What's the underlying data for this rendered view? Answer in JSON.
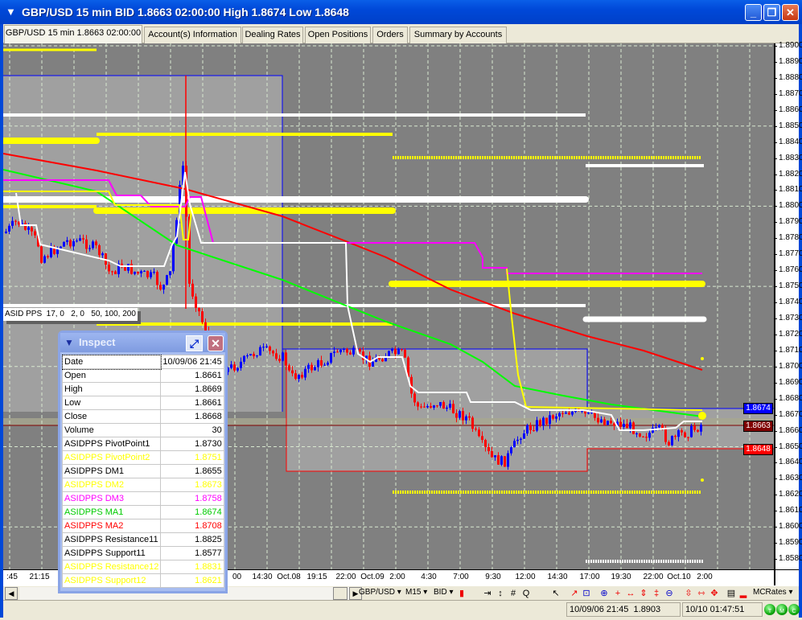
{
  "window": {
    "title": "GBP/USD 15 min BID 1.8663 02:00:00 High 1.8674 Low 1.8648",
    "icon": "fxcm-logo-icon",
    "buttons": {
      "minimize": "_",
      "restore": "❐",
      "close": "✕"
    }
  },
  "tabs": [
    {
      "label": "GBP/USD 15 min 1.8663 02:00:00",
      "active": true
    },
    {
      "label": "Account(s) Information"
    },
    {
      "label": "Dealing Rates"
    },
    {
      "label": "Open Positions"
    },
    {
      "label": "Orders"
    },
    {
      "label": "Summary by Accounts"
    }
  ],
  "chart": {
    "background": "#808080",
    "indicator_label": "ASID PPS  17, 0   2, 0   50, 100, 200",
    "price_axis": [
      "1.8900",
      "1.8890",
      "1.8880",
      "1.8870",
      "1.8860",
      "1.8850",
      "1.8840",
      "1.8830",
      "1.8820",
      "1.8810",
      "1.8800",
      "1.8790",
      "1.8780",
      "1.8770",
      "1.8760",
      "1.8750",
      "1.8740",
      "1.8730",
      "1.8720",
      "1.8710",
      "1.8700",
      "1.8690",
      "1.8680",
      "1.8670",
      "1.8660",
      "1.8650",
      "1.8640",
      "1.8630",
      "1.8620",
      "1.8610",
      "1.8600",
      "1.8590",
      "1.8580"
    ],
    "price_tags": [
      {
        "value": "1.8674",
        "color": "#0000ff"
      },
      {
        "value": "1.8663",
        "color": "#800000"
      },
      {
        "value": "1.8648",
        "color": "#ff0000"
      }
    ],
    "time_axis": [
      ":45",
      "21:15",
      "00",
      "14:30",
      "Oct.08",
      "19:15",
      "22:00",
      "Oct.09",
      "2:00",
      "4:30",
      "7:00",
      "9:30",
      "12:00",
      "14:30",
      "17:00",
      "19:30",
      "22:00",
      "Oct.10",
      "2:00"
    ],
    "colors": {
      "up": "#0000ff",
      "down": "#ff0000",
      "ma1": "#00ff00",
      "ma2": "#ff0000",
      "dm1": "#ffffff",
      "dm2": "#ffff00",
      "dm3": "#ff00ff"
    }
  },
  "toolbar": {
    "symbol": "GBP/USD ▾",
    "timeframe": "M15 ▾",
    "price_type": "BID ▾",
    "chart_type_icon": "candlestick-icon",
    "zoom_icon": "⊕",
    "rates_source": "MCRates ▾"
  },
  "status": {
    "cursor": "10/09/06 21:45  1.8903",
    "time": "10/10 01:47:51",
    "indicators": [
      "T",
      "M",
      "C"
    ]
  },
  "inspect": {
    "title": "Inspect",
    "rows": [
      {
        "label": "Date",
        "value": "10/09/06 21:45",
        "color": "#000000"
      },
      {
        "label": "Open",
        "value": "1.8661",
        "color": "#000000"
      },
      {
        "label": "High",
        "value": "1.8669",
        "color": "#000000"
      },
      {
        "label": "Low",
        "value": "1.8661",
        "color": "#000000"
      },
      {
        "label": "Close",
        "value": "1.8668",
        "color": "#000000"
      },
      {
        "label": "Volume",
        "value": "30",
        "color": "#000000"
      },
      {
        "label": "ASIDPPS PivotPoint1",
        "value": "1.8730",
        "color": "#000000"
      },
      {
        "label": "ASIDPPS PivotPoint2",
        "value": "1.8751",
        "color": "#ffff00"
      },
      {
        "label": "ASIDPPS DM1",
        "value": "1.8655",
        "color": "#000000"
      },
      {
        "label": "ASIDPPS DM2",
        "value": "1.8673",
        "color": "#ffff00"
      },
      {
        "label": "ASIDPPS DM3",
        "value": "1.8758",
        "color": "#ff00ff"
      },
      {
        "label": "ASIDPPS MA1",
        "value": "1.8674",
        "color": "#00cc00"
      },
      {
        "label": "ASIDPPS MA2",
        "value": "1.8708",
        "color": "#ff0000"
      },
      {
        "label": "ASIDPPS Resistance11",
        "value": "1.8825",
        "color": "#000000"
      },
      {
        "label": "ASIDPPS Support11",
        "value": "1.8577",
        "color": "#000000"
      },
      {
        "label": "ASIDPPS Resistance12",
        "value": "1.8831",
        "color": "#ffff00"
      },
      {
        "label": "ASIDPPS Support12",
        "value": "1.8621",
        "color": "#ffff00"
      }
    ]
  }
}
